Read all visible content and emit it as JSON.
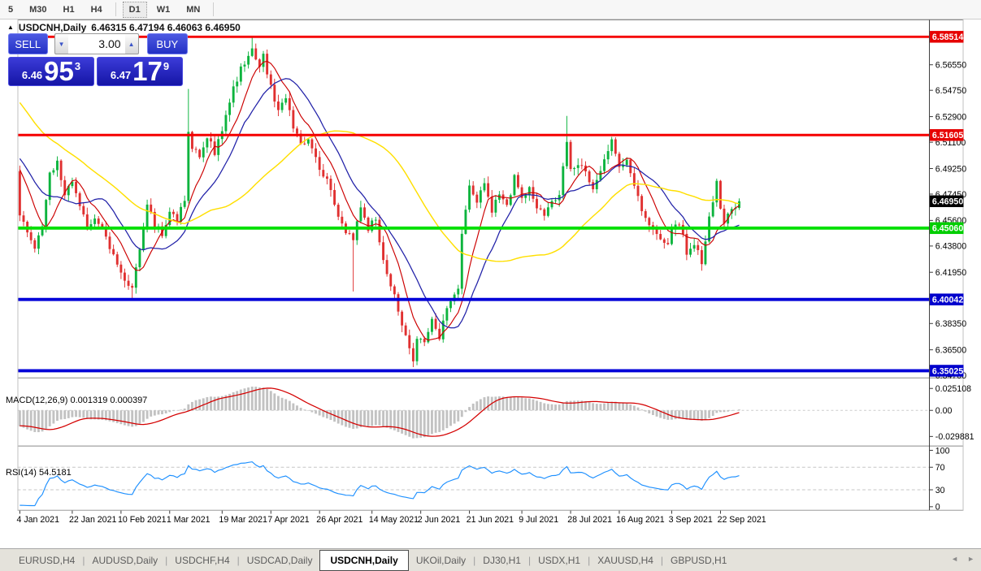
{
  "toolbar": {
    "items": [
      {
        "label": "5"
      },
      {
        "label": "M30"
      },
      {
        "label": "H1"
      },
      {
        "label": "H4"
      },
      {
        "sep": true
      },
      {
        "label": "D1",
        "active": true
      },
      {
        "label": "W1"
      },
      {
        "label": "MN"
      },
      {
        "sep": true
      }
    ]
  },
  "chart_header": {
    "collapse_icon": "▲",
    "symbol": "USDCNH,Daily",
    "ohlc": "6.46315 6.47194 6.46063 6.46950"
  },
  "trade_panel": {
    "sell_label": "SELL",
    "buy_label": "BUY",
    "volume": "3.00",
    "down_icon": "▼",
    "up_icon": "▲",
    "sell_price_small": "6.46",
    "sell_price_big": "95",
    "sell_price_sup": "3",
    "buy_price_small": "6.47",
    "buy_price_big": "17",
    "buy_price_sup": "9"
  },
  "indicators": {
    "macd_label": "MACD(12,26,9)",
    "macd_values": "0.001319 0.000397",
    "rsi_label": "RSI(14)",
    "rsi_value": "54.5181"
  },
  "bottom_tabs": {
    "tabs": [
      "EURUSD,H4",
      "AUDUSD,Daily",
      "USDCHF,H4",
      "USDCAD,Daily",
      "USDCNH,Daily",
      "UKOil,Daily",
      "DJ30,H1",
      "USDX,H1",
      "XAUUSD,H4",
      "GBPUSD,H1"
    ],
    "active": "USDCNH,Daily",
    "scroll_left_icon": "◄",
    "scroll_right_icon": "►"
  },
  "chart_data": {
    "type": "candlestick",
    "symbol": "USDCNH",
    "timeframe": "Daily",
    "ohlc_current": {
      "open": 6.46315,
      "high": 6.47194,
      "low": 6.46063,
      "close": 6.4695
    },
    "candle_up_color": "#0db43e",
    "candle_down_color": "#e03030",
    "y_axis_labels": [
      "6.56550",
      "6.54750",
      "6.52900",
      "6.51100",
      "6.49250",
      "6.47450",
      "6.45600",
      "6.43800",
      "6.41950",
      "6.38350",
      "6.36500",
      "6.34700"
    ],
    "price_badges": [
      {
        "text": "6.58514",
        "color": "#e60000"
      },
      {
        "text": "6.51605",
        "color": "#e60000"
      },
      {
        "text": "6.46950",
        "color": "#000000"
      },
      {
        "text": "6.45060",
        "color": "#00ce00"
      },
      {
        "text": "6.40042",
        "color": "#0000cc"
      },
      {
        "text": "6.35025",
        "color": "#0000cc"
      }
    ],
    "level_lines": [
      {
        "price": 6.58514,
        "color": "#f50000",
        "width": 3
      },
      {
        "price": 6.51605,
        "color": "#f50000",
        "width": 3
      },
      {
        "price": 6.4506,
        "color": "#00e000",
        "width": 4
      },
      {
        "price": 6.40042,
        "color": "#0000d8",
        "width": 4
      },
      {
        "price": 6.35025,
        "color": "#0000d8",
        "width": 4
      }
    ],
    "x_labels": [
      {
        "text": "4 Jan 2021",
        "day": 0
      },
      {
        "text": "22 Jan 2021",
        "day": 14
      },
      {
        "text": "10 Feb 2021",
        "day": 27
      },
      {
        "text": "1 Mar 2021",
        "day": 40
      },
      {
        "text": "19 Mar 2021",
        "day": 54
      },
      {
        "text": "7 Apr 2021",
        "day": 67
      },
      {
        "text": "26 Apr 2021",
        "day": 80
      },
      {
        "text": "14 May 2021",
        "day": 94
      },
      {
        "text": "2 Jun 2021",
        "day": 107
      },
      {
        "text": "21 Jun 2021",
        "day": 120
      },
      {
        "text": "9 Jul 2021",
        "day": 134
      },
      {
        "text": "28 Jul 2021",
        "day": 147
      },
      {
        "text": "16 Aug 2021",
        "day": 160
      },
      {
        "text": "3 Sep 2021",
        "day": 174
      },
      {
        "text": "22 Sep 2021",
        "day": 187
      }
    ],
    "price_path": [
      [
        -50,
        6.635
      ],
      [
        -35,
        6.575
      ],
      [
        -20,
        6.528
      ],
      [
        -10,
        6.502
      ],
      [
        -3,
        6.497
      ],
      [
        -1,
        6.492
      ],
      [
        0,
        6.462
      ],
      [
        1,
        6.455
      ],
      [
        2,
        6.448
      ],
      [
        4,
        6.434
      ],
      [
        6,
        6.452
      ],
      [
        8,
        6.488
      ],
      [
        10,
        6.497
      ],
      [
        12,
        6.476
      ],
      [
        14,
        6.482
      ],
      [
        16,
        6.466
      ],
      [
        18,
        6.45
      ],
      [
        20,
        6.456
      ],
      [
        22,
        6.449
      ],
      [
        25,
        6.432
      ],
      [
        28,
        6.415
      ],
      [
        30,
        6.407
      ],
      [
        32,
        6.434
      ],
      [
        34,
        6.468
      ],
      [
        36,
        6.452
      ],
      [
        38,
        6.447
      ],
      [
        40,
        6.462
      ],
      [
        42,
        6.456
      ],
      [
        44,
        6.47
      ],
      [
        45,
        6.52
      ],
      [
        46,
        6.508
      ],
      [
        48,
        6.5
      ],
      [
        50,
        6.515
      ],
      [
        52,
        6.503
      ],
      [
        55,
        6.53
      ],
      [
        57,
        6.55
      ],
      [
        59,
        6.562
      ],
      [
        61,
        6.572
      ],
      [
        62,
        6.578
      ],
      [
        64,
        6.565
      ],
      [
        65,
        6.572
      ],
      [
        67,
        6.55
      ],
      [
        69,
        6.534
      ],
      [
        71,
        6.544
      ],
      [
        73,
        6.522
      ],
      [
        75,
        6.508
      ],
      [
        77,
        6.514
      ],
      [
        80,
        6.494
      ],
      [
        83,
        6.478
      ],
      [
        85,
        6.46
      ],
      [
        87,
        6.447
      ],
      [
        89,
        6.442
      ],
      [
        91,
        6.465
      ],
      [
        93,
        6.45
      ],
      [
        95,
        6.458
      ],
      [
        97,
        6.428
      ],
      [
        99,
        6.41
      ],
      [
        101,
        6.394
      ],
      [
        103,
        6.374
      ],
      [
        105,
        6.359
      ],
      [
        106,
        6.374
      ],
      [
        108,
        6.368
      ],
      [
        110,
        6.385
      ],
      [
        112,
        6.374
      ],
      [
        114,
        6.394
      ],
      [
        116,
        6.404
      ],
      [
        117,
        6.408
      ],
      [
        118,
        6.445
      ],
      [
        119,
        6.462
      ],
      [
        120,
        6.478
      ],
      [
        122,
        6.47
      ],
      [
        124,
        6.48
      ],
      [
        126,
        6.464
      ],
      [
        128,
        6.476
      ],
      [
        130,
        6.466
      ],
      [
        132,
        6.486
      ],
      [
        134,
        6.47
      ],
      [
        136,
        6.478
      ],
      [
        138,
        6.464
      ],
      [
        140,
        6.46
      ],
      [
        142,
        6.468
      ],
      [
        144,
        6.472
      ],
      [
        146,
        6.512
      ],
      [
        147,
        6.49
      ],
      [
        149,
        6.497
      ],
      [
        151,
        6.488
      ],
      [
        153,
        6.48
      ],
      [
        155,
        6.492
      ],
      [
        157,
        6.503
      ],
      [
        158,
        6.511
      ],
      [
        160,
        6.492
      ],
      [
        162,
        6.497
      ],
      [
        164,
        6.48
      ],
      [
        166,
        6.462
      ],
      [
        168,
        6.455
      ],
      [
        170,
        6.447
      ],
      [
        173,
        6.44
      ],
      [
        175,
        6.455
      ],
      [
        177,
        6.446
      ],
      [
        178,
        6.43
      ],
      [
        180,
        6.44
      ],
      [
        182,
        6.427
      ],
      [
        184,
        6.458
      ],
      [
        186,
        6.482
      ],
      [
        187,
        6.465
      ],
      [
        188,
        6.455
      ],
      [
        190,
        6.465
      ],
      [
        192,
        6.4695
      ]
    ],
    "wick_events": [
      {
        "day": 30,
        "low": 6.4004
      },
      {
        "day": 45,
        "high": 6.5485
      },
      {
        "day": 62,
        "high": 6.5852
      },
      {
        "day": 89,
        "low": 6.406
      },
      {
        "day": 105,
        "low": 6.3528
      },
      {
        "day": 118,
        "low": 6.404
      },
      {
        "day": 146,
        "high": 6.5295
      },
      {
        "day": 182,
        "low": 6.4206
      }
    ],
    "moving_averages": [
      {
        "period": 8,
        "color": "#cc0000",
        "w": 1.2
      },
      {
        "period": 16,
        "color": "#2121a8",
        "w": 1.3
      },
      {
        "period": 45,
        "color": "#ffdf00",
        "w": 1.5
      }
    ],
    "macd": {
      "scale": [
        {
          "text": "0.025108",
          "v": 0.025108
        },
        {
          "text": "0.00",
          "v": 0
        },
        {
          "text": "-0.029881",
          "v": -0.029881
        }
      ],
      "histogram_color": "#c2c2c2",
      "signal_color": "#d40000"
    },
    "rsi": {
      "scale": [
        {
          "text": "100",
          "v": 100
        },
        {
          "text": "70",
          "v": 70
        },
        {
          "text": "30",
          "v": 30
        },
        {
          "text": "0",
          "v": 0
        }
      ],
      "dashed_levels": [
        70,
        30
      ],
      "line_color": "#1e90ff"
    }
  }
}
